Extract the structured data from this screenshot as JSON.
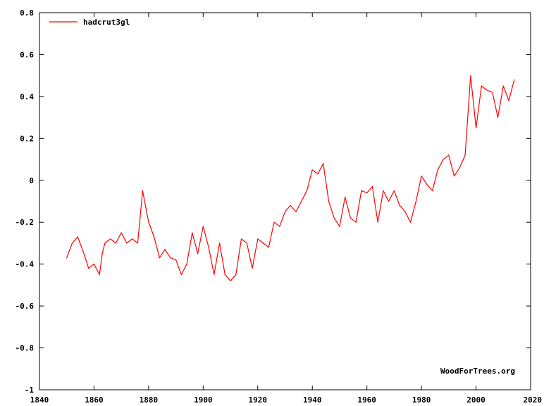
{
  "chart_data": {
    "type": "line",
    "title": "",
    "xlabel": "",
    "ylabel": "",
    "xlim": [
      1840,
      2020
    ],
    "ylim": [
      -1,
      0.8
    ],
    "x_ticks": [
      1840,
      1860,
      1880,
      1900,
      1920,
      1940,
      1960,
      1980,
      2000,
      2020
    ],
    "y_ticks": [
      -1,
      -0.8,
      -0.6,
      -0.4,
      -0.2,
      0,
      0.2,
      0.4,
      0.6,
      0.8
    ],
    "x_tick_labels": [
      "1840",
      "1860",
      "1880",
      "1900",
      "1920",
      "1940",
      "1960",
      "1980",
      "2000",
      "2020"
    ],
    "y_tick_labels": [
      "-1",
      "-0.8",
      "-0.6",
      "-0.4",
      "-0.2",
      "0",
      "0.2",
      "0.4",
      "0.6",
      "0.8"
    ],
    "grid": false,
    "legend": {
      "position": "top-left"
    },
    "series": [
      {
        "name": "hadcrut3gl",
        "color": "#ff0000",
        "x": [
          1850,
          1852,
          1854,
          1856,
          1858,
          1860,
          1862,
          1863,
          1864,
          1866,
          1868,
          1870,
          1872,
          1874,
          1876,
          1877.8,
          1880,
          1882,
          1884,
          1886,
          1888,
          1890,
          1892,
          1894,
          1896,
          1898,
          1900,
          1902,
          1904,
          1906,
          1908,
          1910,
          1912,
          1914,
          1916,
          1918,
          1920,
          1922,
          1924,
          1926,
          1928,
          1930,
          1932,
          1934,
          1936,
          1938,
          1940,
          1942,
          1944,
          1946,
          1948,
          1950,
          1952,
          1954,
          1956,
          1958,
          1960,
          1962,
          1964,
          1966,
          1968,
          1970,
          1972,
          1974,
          1976,
          1978,
          1980,
          1982,
          1984,
          1986,
          1988,
          1990,
          1992,
          1994,
          1996,
          1998,
          2000,
          2002,
          2004,
          2006,
          2008,
          2010,
          2012,
          2014
        ],
        "values": [
          -0.37,
          -0.3,
          -0.27,
          -0.34,
          -0.42,
          -0.4,
          -0.45,
          -0.35,
          -0.3,
          -0.28,
          -0.3,
          -0.25,
          -0.3,
          -0.28,
          -0.3,
          -0.05,
          -0.2,
          -0.27,
          -0.37,
          -0.33,
          -0.37,
          -0.38,
          -0.45,
          -0.4,
          -0.25,
          -0.35,
          -0.22,
          -0.32,
          -0.45,
          -0.3,
          -0.45,
          -0.48,
          -0.45,
          -0.28,
          -0.3,
          -0.42,
          -0.28,
          -0.3,
          -0.32,
          -0.2,
          -0.22,
          -0.15,
          -0.12,
          -0.15,
          -0.1,
          -0.05,
          0.05,
          0.03,
          0.08,
          -0.1,
          -0.18,
          -0.22,
          -0.08,
          -0.18,
          -0.2,
          -0.05,
          -0.06,
          -0.03,
          -0.2,
          -0.05,
          -0.1,
          -0.05,
          -0.12,
          -0.15,
          -0.2,
          -0.1,
          0.02,
          -0.02,
          -0.05,
          0.05,
          0.1,
          0.12,
          0.02,
          0.06,
          0.12,
          0.5,
          0.25,
          0.45,
          0.43,
          0.42,
          0.3,
          0.45,
          0.38,
          0.48
        ]
      }
    ]
  },
  "watermark": "WoodForTrees.org"
}
